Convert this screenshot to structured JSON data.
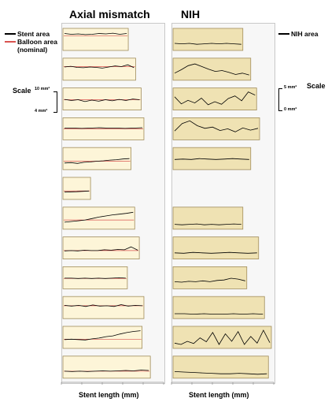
{
  "titles": {
    "left": "Axial mismatch",
    "right": "NIH"
  },
  "xlabels": {
    "left": "Stent length (mm)",
    "right": "Stent length (mm)"
  },
  "legend_left": {
    "stent": "Stent area",
    "balloon": "Balloon area",
    "nominal": "(nominal)"
  },
  "legend_right": {
    "nih": "NIH area"
  },
  "scale_left": {
    "label": "Scale",
    "top": "10 mm²",
    "bottom": "4 mm²"
  },
  "scale_right": {
    "label": "Scale",
    "top": "5 mm²",
    "bottom": "0 mm²"
  },
  "colors": {
    "panel_fill_left": "#fdf5d8",
    "panel_fill_right": "#efe2b3",
    "stent_line": "#000000",
    "balloon_line": "#d9534f",
    "nih_line": "#000000"
  },
  "chart_data": [
    {
      "type": "line",
      "title": "Axial mismatch",
      "xlabel": "Stent length (mm)",
      "ylim": [
        4,
        10
      ],
      "panels": [
        {
          "length": 0.71,
          "stent": [
            8.6,
            8.4,
            8.5,
            8.3,
            8.4,
            8.6,
            8.5,
            8.7,
            8.4,
            8.6
          ],
          "balloon": 8.0
        },
        {
          "length": 0.79,
          "stent": [
            7.6,
            7.8,
            7.5,
            7.4,
            7.6,
            7.5,
            7.3,
            7.6,
            7.9,
            7.7,
            8.2,
            7.4
          ],
          "balloon": 7.7
        },
        {
          "length": 0.85,
          "stent": [
            6.9,
            6.6,
            6.8,
            6.3,
            6.7,
            6.4,
            6.8,
            6.5,
            6.9,
            6.6,
            7.0,
            6.8
          ],
          "balloon": 6.8
        },
        {
          "length": 0.88,
          "stent": [
            7.2,
            7.2,
            7.1,
            7.2,
            7.3,
            7.2,
            7.2,
            7.1,
            7.2,
            7.3
          ],
          "balloon": 7.0
        },
        {
          "length": 0.74,
          "stent": [
            5.8,
            5.9,
            5.7,
            6.0,
            6.1,
            6.3,
            6.4,
            6.6,
            6.7,
            6.9,
            7.0
          ],
          "balloon": 6.3
        },
        {
          "length": 0.3,
          "stent": [
            6.0,
            6.1,
            6.3
          ],
          "balloon": 6.3
        },
        {
          "length": 0.78,
          "stent": [
            5.9,
            6.1,
            6.3,
            6.5,
            6.9,
            7.3,
            7.6,
            7.9,
            8.1,
            8.3,
            8.6
          ],
          "balloon": 6.5
        },
        {
          "length": 0.83,
          "stent": [
            6.2,
            6.3,
            6.2,
            6.4,
            6.3,
            6.3,
            6.5,
            6.4,
            6.6,
            6.5,
            7.3,
            6.4
          ],
          "balloon": 6.3
        },
        {
          "length": 0.7,
          "stent": [
            6.9,
            6.9,
            6.8,
            6.9,
            6.8,
            6.9,
            6.8,
            6.9,
            7.0,
            6.9
          ],
          "balloon": 6.8
        },
        {
          "length": 0.88,
          "stent": [
            7.6,
            7.4,
            7.6,
            7.3,
            7.7,
            7.4,
            7.5,
            7.3,
            7.8,
            7.4,
            7.6,
            7.5
          ],
          "balloon": 7.5
        },
        {
          "length": 0.86,
          "stent": [
            6.4,
            6.5,
            6.4,
            6.3,
            6.6,
            6.8,
            7.2,
            7.4,
            7.9,
            8.3,
            8.6,
            8.8
          ],
          "balloon": 6.5
        },
        {
          "length": 0.95,
          "stent": [
            5.9,
            5.8,
            5.9,
            5.8,
            5.9,
            6.0,
            5.9,
            6.0,
            6.1,
            6.0,
            6.2,
            6.1
          ],
          "balloon": 5.9
        }
      ]
    },
    {
      "type": "line",
      "title": "NIH",
      "xlabel": "Stent length (mm)",
      "ylim": [
        0,
        5
      ],
      "panels": [
        {
          "length": 0.71,
          "nih": [
            1.6,
            1.5,
            1.6,
            1.4,
            1.5,
            1.6,
            1.5,
            1.6,
            1.5,
            1.4
          ]
        },
        {
          "length": 0.79,
          "nih": [
            1.6,
            2.4,
            3.3,
            3.7,
            3.1,
            2.5,
            2.0,
            2.2,
            1.8,
            1.3,
            1.6,
            1.2
          ]
        },
        {
          "length": 0.85,
          "nih": [
            3.0,
            1.4,
            2.2,
            1.6,
            2.7,
            1.2,
            1.9,
            1.3,
            2.6,
            3.2,
            2.1,
            4.1,
            3.4
          ]
        },
        {
          "length": 0.88,
          "nih": [
            2.0,
            3.7,
            4.3,
            3.2,
            2.6,
            2.9,
            2.1,
            2.5,
            1.8,
            2.7,
            2.2,
            2.6
          ]
        },
        {
          "length": 0.79,
          "nih": [
            2.3,
            2.4,
            2.3,
            2.5,
            2.4,
            2.3,
            2.4,
            2.5,
            2.4,
            2.3
          ]
        },
        {
          "length": null,
          "nih": []
        },
        {
          "length": 0.71,
          "nih": [
            1.1,
            1.0,
            1.1,
            1.2,
            1.0,
            1.1,
            1.0,
            1.1,
            1.2,
            1.1
          ]
        },
        {
          "length": 0.87,
          "nih": [
            1.4,
            1.3,
            1.5,
            1.4,
            1.3,
            1.4,
            1.5,
            1.4,
            1.3,
            1.4
          ]
        },
        {
          "length": 0.75,
          "nih": [
            1.6,
            1.5,
            1.7,
            1.6,
            1.8,
            1.6,
            1.9,
            2.0,
            2.4,
            2.2,
            1.8
          ]
        },
        {
          "length": 0.93,
          "nih": [
            1.1,
            1.1,
            1.0,
            1.1,
            1.0,
            1.0,
            1.1,
            1.0,
            1.1,
            1.0
          ]
        },
        {
          "length": 1.0,
          "nih": [
            1.2,
            0.9,
            1.6,
            1.1,
            2.4,
            1.5,
            3.6,
            0.9,
            3.3,
            1.6,
            3.8,
            0.9,
            2.7,
            1.2,
            4.1,
            1.3
          ]
        },
        {
          "length": 0.97,
          "nih": [
            1.5,
            1.4,
            1.3,
            1.2,
            1.1,
            1.0,
            1.0,
            1.1,
            1.0,
            0.9,
            1.0
          ]
        }
      ]
    }
  ]
}
